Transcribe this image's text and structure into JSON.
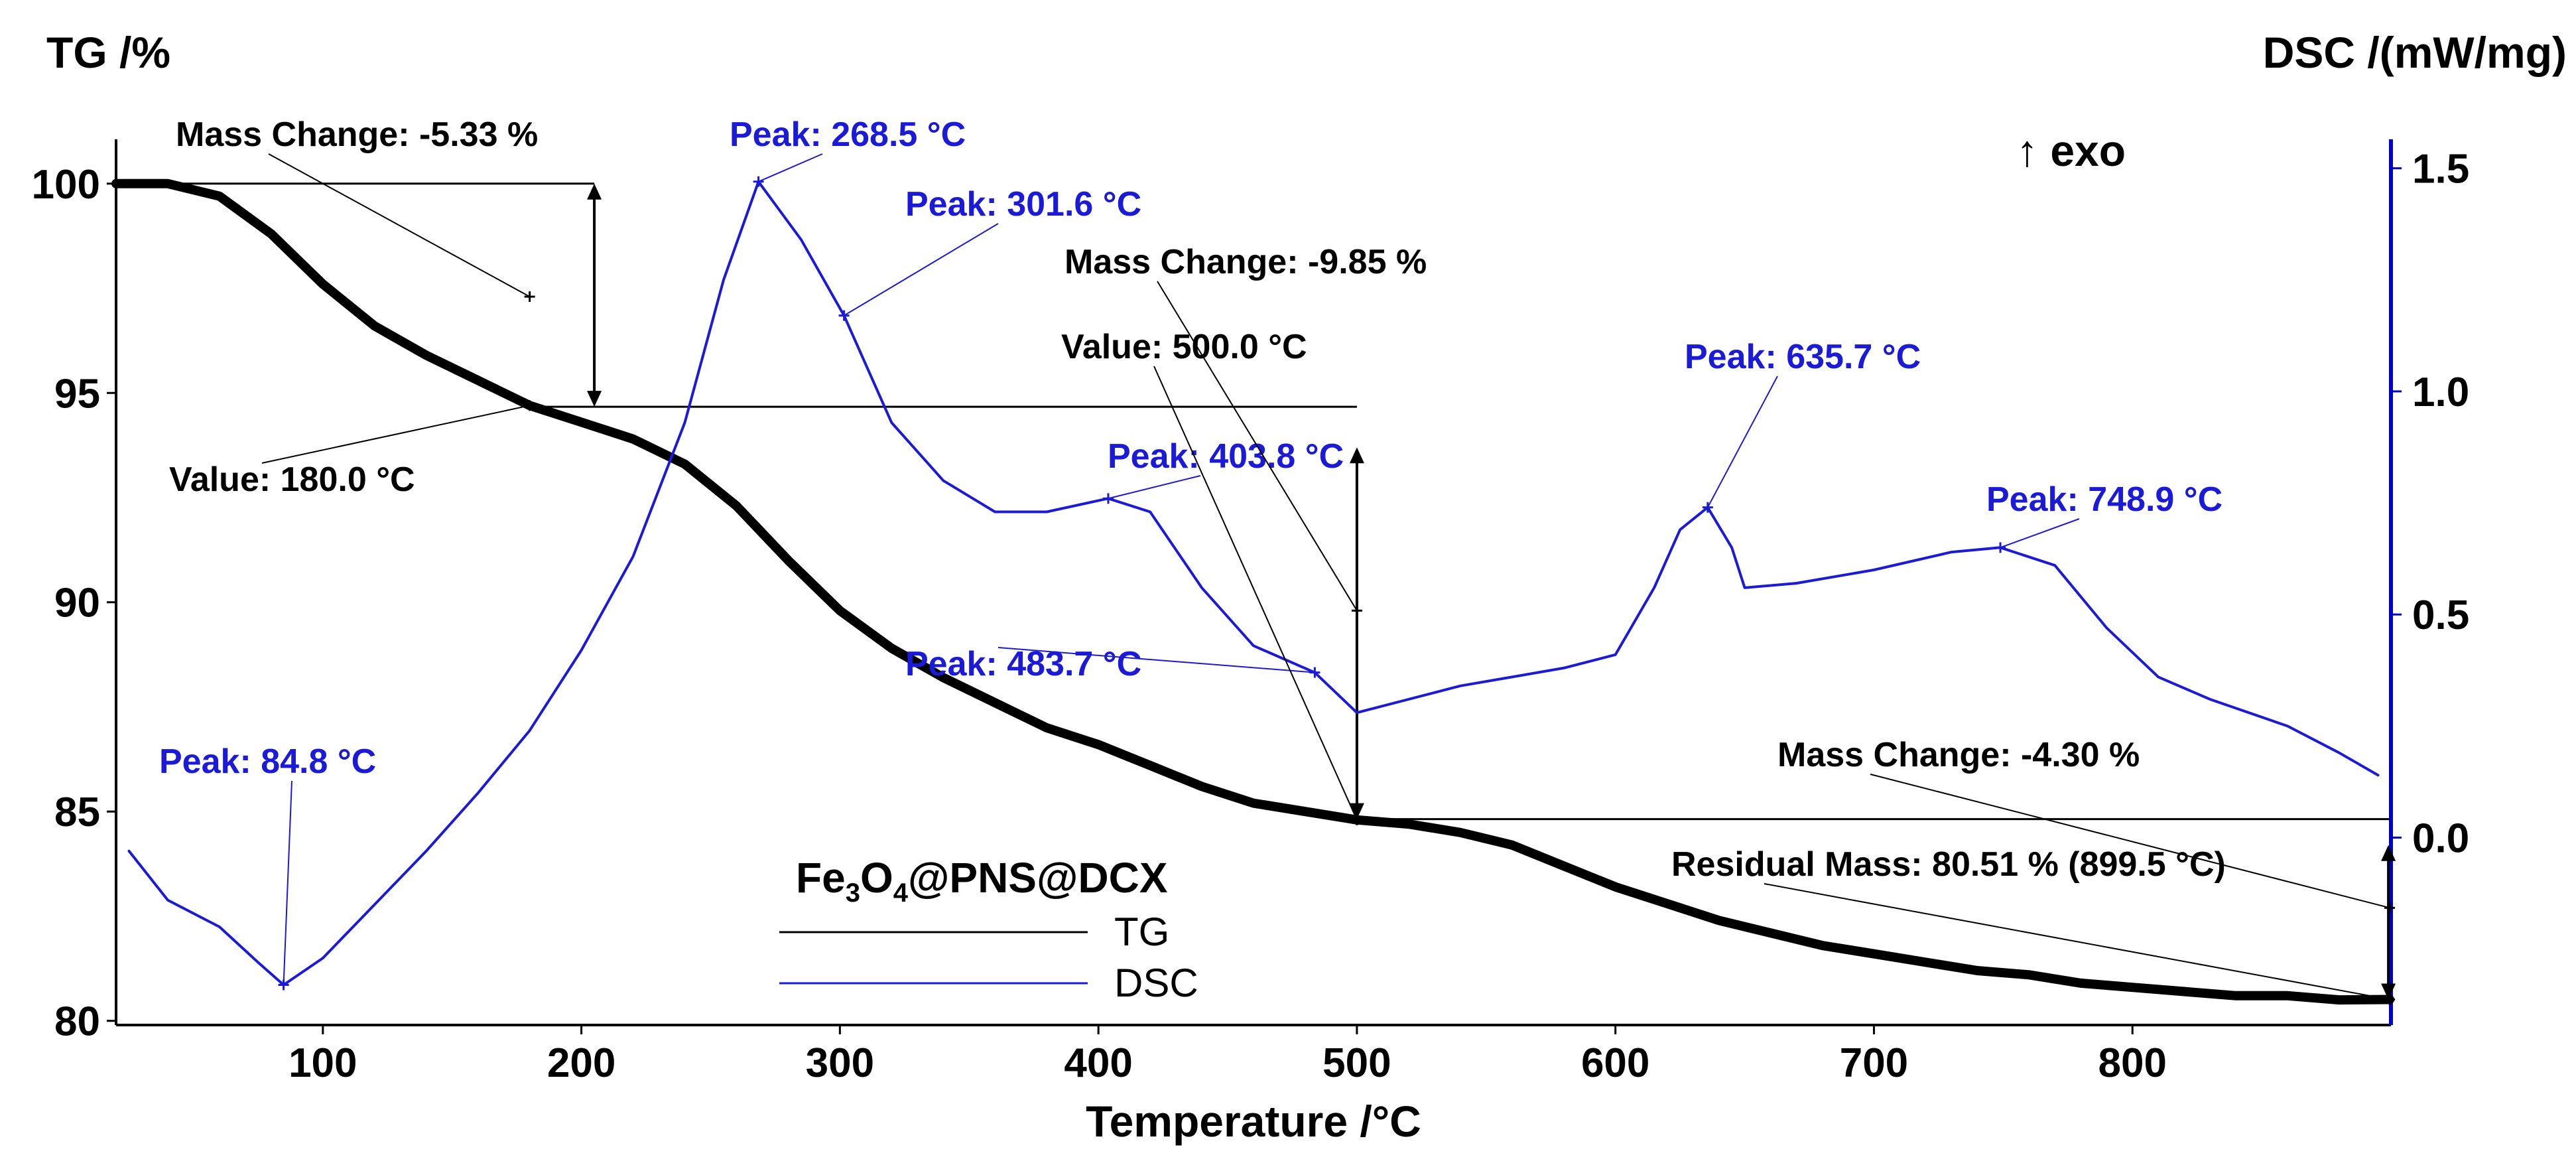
{
  "chart_data": {
    "type": "line",
    "title": "",
    "xlabel": "Temperature /°C",
    "ylabel_left": "TG /%",
    "ylabel_right": "DSC /(mW/mg)",
    "exo_label": "↑ exo",
    "sample_label": {
      "main": "Fe",
      "sub1": "3",
      "mid": "O",
      "sub2": "4",
      "rest": "@PNS@DCX"
    },
    "xlim": [
      20,
      900
    ],
    "ylim_left": [
      79.9,
      100.9
    ],
    "ylim_right": [
      -0.42,
      1.55
    ],
    "x_ticks": [
      100,
      200,
      300,
      400,
      500,
      600,
      700,
      800
    ],
    "y_ticks_left": [
      80,
      85,
      90,
      95,
      100
    ],
    "y_ticks_right": [
      0.0,
      0.5,
      1.0,
      1.5
    ],
    "grid": false,
    "legend_position": "bottom-center",
    "colors": {
      "tg": "#000000",
      "dsc": "#1a1ad8",
      "axis_right": "#0000cc"
    },
    "series": [
      {
        "name": "TG",
        "axis": "left",
        "x": [
          20,
          40,
          60,
          80,
          100,
          120,
          140,
          160,
          180,
          200,
          220,
          240,
          260,
          280,
          300,
          320,
          340,
          360,
          380,
          400,
          420,
          440,
          460,
          480,
          500,
          520,
          540,
          560,
          580,
          600,
          620,
          640,
          660,
          680,
          700,
          720,
          740,
          760,
          780,
          800,
          820,
          840,
          860,
          880,
          899.5
        ],
        "values": [
          100.0,
          100.0,
          99.7,
          98.8,
          97.6,
          96.6,
          95.9,
          95.3,
          94.7,
          94.3,
          93.9,
          93.3,
          92.3,
          91.0,
          89.8,
          88.9,
          88.2,
          87.6,
          87.0,
          86.6,
          86.1,
          85.6,
          85.2,
          85.0,
          84.8,
          84.7,
          84.5,
          84.2,
          83.7,
          83.2,
          82.8,
          82.4,
          82.1,
          81.8,
          81.6,
          81.4,
          81.2,
          81.1,
          80.9,
          80.8,
          80.7,
          80.6,
          80.6,
          80.5,
          80.51
        ]
      },
      {
        "name": "DSC",
        "axis": "right",
        "x": [
          25,
          40,
          60,
          75,
          84.8,
          100,
          120,
          140,
          160,
          180,
          200,
          220,
          240,
          255,
          268.5,
          285,
          301.6,
          320,
          340,
          360,
          380,
          403.8,
          420,
          440,
          460,
          483.7,
          500,
          520,
          540,
          560,
          580,
          600,
          615,
          625,
          635.7,
          645,
          650,
          670,
          700,
          730,
          748.9,
          770,
          790,
          810,
          830,
          860,
          880,
          895
        ],
        "values": [
          -0.03,
          -0.14,
          -0.2,
          -0.28,
          -0.33,
          -0.27,
          -0.15,
          -0.03,
          0.1,
          0.24,
          0.42,
          0.63,
          0.93,
          1.25,
          1.47,
          1.34,
          1.17,
          0.93,
          0.8,
          0.73,
          0.73,
          0.76,
          0.73,
          0.56,
          0.43,
          0.37,
          0.28,
          0.31,
          0.34,
          0.36,
          0.38,
          0.41,
          0.56,
          0.69,
          0.74,
          0.65,
          0.56,
          0.57,
          0.6,
          0.64,
          0.65,
          0.61,
          0.47,
          0.36,
          0.31,
          0.25,
          0.19,
          0.14
        ]
      }
    ],
    "annotations": [
      {
        "text": "Peak: 84.8 °C",
        "series": "DSC",
        "x": 84.8,
        "y": -0.33,
        "color": "blue"
      },
      {
        "text": "Peak: 268.5 °C",
        "series": "DSC",
        "x": 268.5,
        "y": 1.47,
        "color": "blue"
      },
      {
        "text": "Peak: 301.6 °C",
        "series": "DSC",
        "x": 301.6,
        "y": 1.17,
        "color": "blue"
      },
      {
        "text": "Peak: 403.8 °C",
        "series": "DSC",
        "x": 403.8,
        "y": 0.76,
        "color": "blue"
      },
      {
        "text": "Peak: 483.7 °C",
        "series": "DSC",
        "x": 483.7,
        "y": 0.37,
        "color": "blue"
      },
      {
        "text": "Peak: 635.7 °C",
        "series": "DSC",
        "x": 635.7,
        "y": 0.74,
        "color": "blue"
      },
      {
        "text": "Peak: 748.9 °C",
        "series": "DSC",
        "x": 748.9,
        "y": 0.65,
        "color": "blue"
      },
      {
        "text": "Mass Change: -5.33 %",
        "series": "TG",
        "x": 180,
        "y": 97.3,
        "color": "black"
      },
      {
        "text": "Value: 180.0 °C",
        "series": "TG",
        "x": 180.0,
        "y": 94.7,
        "color": "black"
      },
      {
        "text": "Mass Change: -9.85 %",
        "series": "TG",
        "x": 500,
        "y": 89.8,
        "color": "black"
      },
      {
        "text": "Value: 500.0 °C",
        "series": "TG",
        "x": 500.0,
        "y": 84.8,
        "color": "black"
      },
      {
        "text": "Mass Change: -4.30 %",
        "series": "TG",
        "x": 899.5,
        "y": 82.7,
        "color": "black"
      },
      {
        "text": "Residual Mass: 80.51 % (899.5 °C)",
        "series": "TG",
        "x": 899.5,
        "y": 80.51,
        "color": "black"
      }
    ],
    "mass_steps": [
      {
        "from_x": 20,
        "to_x": 180,
        "from_y": 100.0,
        "to_y": 94.67
      },
      {
        "from_x": 180,
        "to_x": 500,
        "from_y": 94.67,
        "to_y": 84.82
      },
      {
        "from_x": 500,
        "to_x": 899.5,
        "from_y": 84.82,
        "to_y": 80.51
      }
    ]
  }
}
